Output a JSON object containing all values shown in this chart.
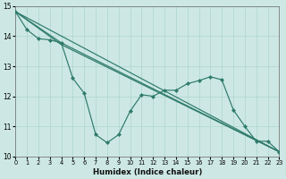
{
  "xlabel": "Humidex (Indice chaleur)",
  "bg_color": "#cde8e4",
  "grid_color": "#aed4ce",
  "line_color": "#2d7a6a",
  "xlim": [
    0,
    23
  ],
  "ylim": [
    10,
    15
  ],
  "yticks": [
    10,
    11,
    12,
    13,
    14,
    15
  ],
  "xticks": [
    0,
    1,
    2,
    3,
    4,
    5,
    6,
    7,
    8,
    9,
    10,
    11,
    12,
    13,
    14,
    15,
    16,
    17,
    18,
    19,
    20,
    21,
    22,
    23
  ],
  "series": [
    {
      "x": [
        0,
        23
      ],
      "y": [
        14.82,
        10.15
      ],
      "marker": false
    },
    {
      "x": [
        0,
        4,
        23
      ],
      "y": [
        14.82,
        13.78,
        10.15
      ],
      "marker": false
    },
    {
      "x": [
        0,
        4,
        23
      ],
      "y": [
        14.82,
        13.72,
        10.15
      ],
      "marker": false
    },
    {
      "x": [
        0,
        1,
        2,
        3,
        4,
        5,
        6,
        7,
        8,
        9,
        10,
        11,
        12,
        13,
        14,
        15,
        16,
        17,
        18,
        19,
        20,
        21,
        22,
        23
      ],
      "y": [
        14.82,
        14.22,
        13.92,
        13.88,
        13.78,
        12.6,
        12.1,
        10.72,
        10.45,
        10.72,
        11.5,
        12.05,
        12.0,
        12.2,
        12.2,
        12.42,
        12.52,
        12.65,
        12.55,
        11.55,
        11.0,
        10.5,
        10.5,
        10.15
      ],
      "marker": true
    }
  ]
}
